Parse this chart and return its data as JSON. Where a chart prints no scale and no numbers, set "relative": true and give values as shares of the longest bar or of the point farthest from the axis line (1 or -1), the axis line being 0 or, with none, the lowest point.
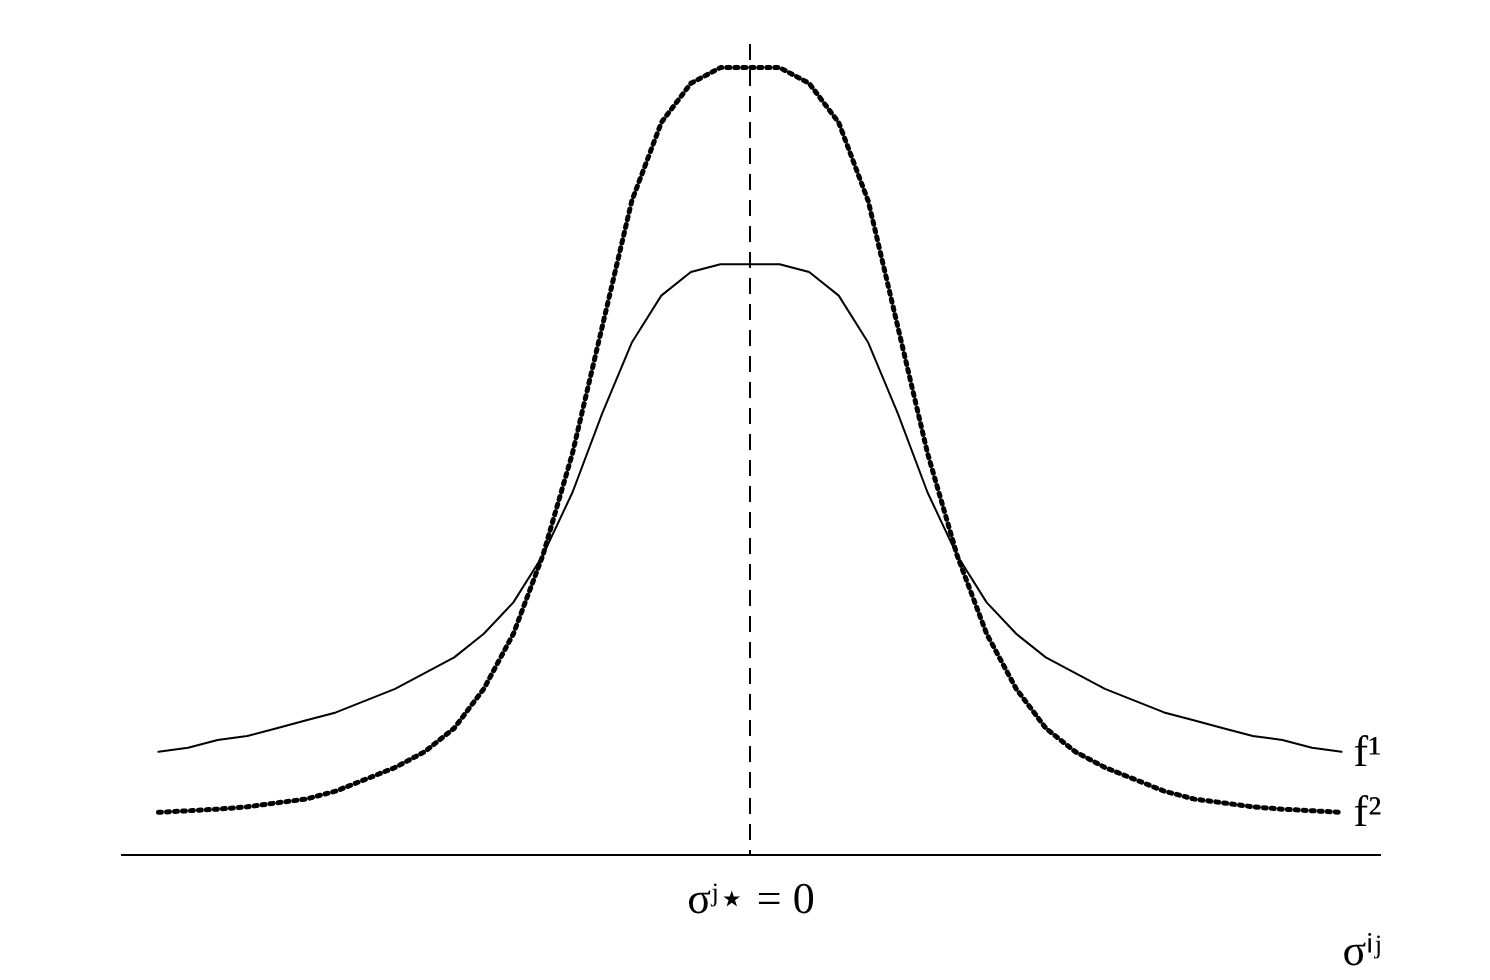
{
  "chart_data": {
    "type": "line",
    "relative": true,
    "categories": [
      null,
      null,
      null,
      null,
      null,
      null,
      null,
      null,
      null,
      null,
      null,
      null,
      null,
      null,
      null,
      null,
      null,
      null,
      null,
      null,
      null,
      null,
      null,
      null,
      null,
      null,
      null,
      null,
      null,
      null,
      null,
      null,
      null,
      null,
      null,
      null,
      null,
      null,
      null,
      null,
      null
    ],
    "xlabel": "σⁱʲ",
    "series": [
      {
        "name": "f¹",
        "color": "#000000",
        "line_style": "solid",
        "values": [
          0.13,
          0.135,
          0.145,
          0.15,
          0.16,
          0.17,
          0.18,
          0.195,
          0.21,
          0.23,
          0.25,
          0.28,
          0.32,
          0.38,
          0.46,
          0.56,
          0.65,
          0.71,
          0.74,
          0.75,
          0.75,
          0.75,
          0.74,
          0.71,
          0.65,
          0.56,
          0.46,
          0.38,
          0.32,
          0.28,
          0.25,
          0.23,
          0.21,
          0.195,
          0.18,
          0.17,
          0.16,
          0.15,
          0.145,
          0.135,
          0.13
        ]
      },
      {
        "name": "f²",
        "color": "#000000",
        "line_style": "dotted",
        "values": [
          0.053,
          0.055,
          0.057,
          0.06,
          0.065,
          0.07,
          0.08,
          0.095,
          0.11,
          0.13,
          0.16,
          0.21,
          0.28,
          0.38,
          0.51,
          0.67,
          0.83,
          0.93,
          0.98,
          1.0,
          1.0,
          1.0,
          0.98,
          0.93,
          0.83,
          0.67,
          0.51,
          0.38,
          0.28,
          0.21,
          0.16,
          0.13,
          0.11,
          0.095,
          0.08,
          0.07,
          0.065,
          0.06,
          0.057,
          0.055,
          0.053
        ]
      }
    ],
    "annotations": [
      "σʲ⋆ = 0"
    ],
    "legend": false
  }
}
